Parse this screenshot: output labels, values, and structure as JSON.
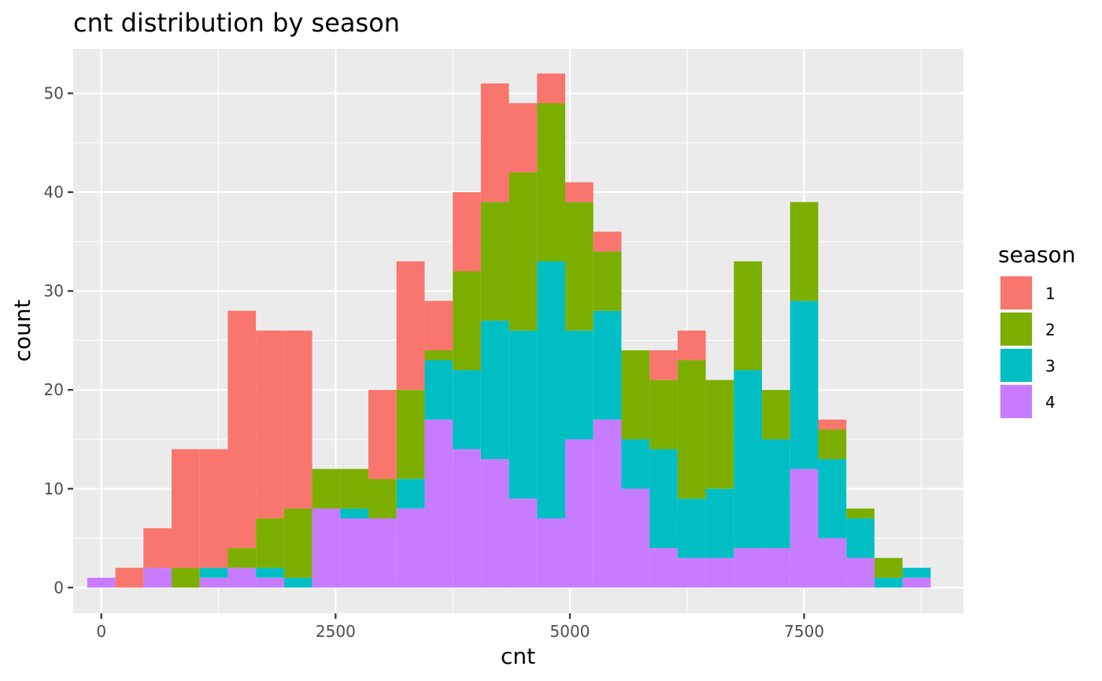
{
  "chart_data": {
    "type": "bar",
    "stacked": true,
    "title": "cnt distribution by season",
    "xlabel": "cnt",
    "ylabel": "count",
    "xlim": [
      -300,
      9200
    ],
    "ylim": [
      -2.6,
      54.5
    ],
    "x_ticks": [
      0,
      2500,
      5000,
      7500
    ],
    "x_tick_labels": [
      "0",
      "2500",
      "5000",
      "7500"
    ],
    "y_ticks": [
      0,
      10,
      20,
      30,
      40,
      50
    ],
    "y_tick_labels": [
      "0",
      "10",
      "20",
      "30",
      "40",
      "50"
    ],
    "grid": true,
    "legend_placement": "right",
    "legend_title": "season",
    "bin_start": -150,
    "bin_width": 300,
    "bin_centers": [
      0,
      300,
      600,
      900,
      1200,
      1500,
      1800,
      2100,
      2400,
      2700,
      3000,
      3300,
      3600,
      3900,
      4200,
      4500,
      4800,
      5100,
      5400,
      5700,
      6000,
      6300,
      6600,
      6900,
      7200,
      7500,
      7800,
      8100,
      8400,
      8700
    ],
    "series": [
      {
        "name": "1",
        "color": "#F8766D",
        "values": [
          0,
          2,
          4,
          12,
          12,
          24,
          19,
          18,
          0,
          0,
          9,
          13,
          5,
          8,
          12,
          7,
          3,
          2,
          2,
          0,
          3,
          3,
          0,
          0,
          0,
          0,
          1,
          0,
          0,
          0
        ]
      },
      {
        "name": "2",
        "color": "#7CAE00",
        "values": [
          0,
          0,
          0,
          2,
          0,
          2,
          5,
          7,
          4,
          4,
          4,
          9,
          1,
          10,
          12,
          16,
          16,
          13,
          6,
          9,
          7,
          14,
          11,
          11,
          5,
          10,
          3,
          1,
          2,
          0
        ]
      },
      {
        "name": "3",
        "color": "#00BFC4",
        "values": [
          0,
          0,
          0,
          0,
          1,
          0,
          1,
          1,
          0,
          1,
          0,
          3,
          6,
          8,
          14,
          17,
          26,
          11,
          11,
          5,
          10,
          6,
          7,
          18,
          11,
          17,
          8,
          4,
          1,
          1
        ]
      },
      {
        "name": "4",
        "color": "#C77CFF",
        "values": [
          1,
          0,
          2,
          0,
          1,
          2,
          1,
          0,
          8,
          7,
          7,
          8,
          17,
          14,
          13,
          9,
          7,
          15,
          17,
          10,
          4,
          3,
          3,
          4,
          4,
          12,
          5,
          3,
          0,
          1
        ]
      }
    ]
  }
}
